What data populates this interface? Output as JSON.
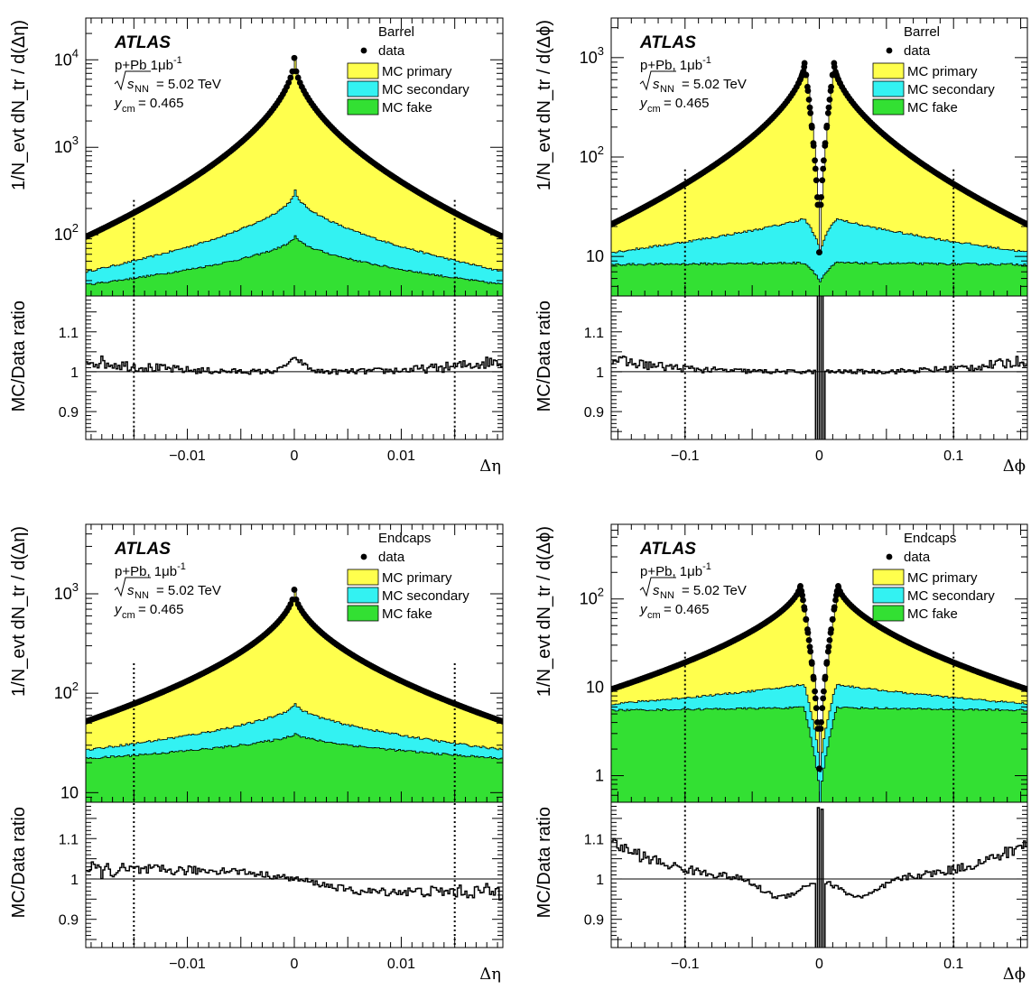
{
  "chart_data": [
    {
      "id": "barrel-deta",
      "type": "area",
      "region_label": "Barrel",
      "x_variable": "eta",
      "atlas_label": "ATLAS",
      "collision": "p+Pb  1μb",
      "collision_exp": "-1",
      "energy": "= 5.02 TeV",
      "ycm": "= 0.465",
      "ylabel": "1/N_evt dN_tr / d(Δη)",
      "ratio_ylabel": "MC/Data ratio",
      "xlabel": "Δη",
      "xlim": [
        -0.0195,
        0.0195
      ],
      "ylim_log": [
        20,
        30000
      ],
      "ratio_ylim": [
        0.83,
        1.19
      ],
      "xticks": [
        "−0.01",
        "0",
        "0.01"
      ],
      "xtick_values": [
        -0.01,
        0,
        0.01
      ],
      "yticks": [
        {
          "base": "10",
          "exp": "2",
          "value": 100
        },
        {
          "base": "10",
          "exp": "3",
          "value": 1000
        },
        {
          "base": "10",
          "exp": "4",
          "value": 10000
        }
      ],
      "ratio_yticks": [
        {
          "label": "0.9",
          "value": 0.9
        },
        {
          "label": "1",
          "value": 1.0
        },
        {
          "label": "1.1",
          "value": 1.1
        }
      ],
      "cut_lines": [
        -0.015,
        0.015
      ],
      "legend": [
        "data",
        "MC primary",
        "MC secondary",
        "MC fake"
      ],
      "profiles": {
        "data": {
          "peak": 10500,
          "edge": 95
        },
        "secondary": {
          "peak": 320,
          "edge": 38
        },
        "fake": {
          "peak": 98,
          "edge": 27
        }
      },
      "ratio_features": {
        "base": 1.0,
        "edge_dev": 0.03,
        "center_bump": 0.03,
        "noise": 0.012
      }
    },
    {
      "id": "barrel-dphi",
      "type": "area",
      "region_label": "Barrel",
      "x_variable": "phi",
      "atlas_label": "ATLAS",
      "collision": "p+Pb,  1μb",
      "collision_exp": "-1",
      "energy": "= 5.02 TeV",
      "ycm": "= 0.465",
      "ylabel": "1/N_evt dN_tr / d(Δϕ)",
      "ratio_ylabel": "MC/Data ratio",
      "xlabel": "Δϕ",
      "xlim": [
        -0.155,
        0.155
      ],
      "ylim_log": [
        4,
        2500
      ],
      "ratio_ylim": [
        0.83,
        1.19
      ],
      "xticks": [
        "−0.1",
        "0",
        "0.1"
      ],
      "xtick_values": [
        -0.1,
        0,
        0.1
      ],
      "yticks": [
        {
          "base": "10",
          "exp": "",
          "value": 10
        },
        {
          "base": "10",
          "exp": "2",
          "value": 100
        },
        {
          "base": "10",
          "exp": "3",
          "value": 1000
        }
      ],
      "ratio_yticks": [
        {
          "label": "0.9",
          "value": 0.9
        },
        {
          "label": "1",
          "value": 1.0
        },
        {
          "label": "1.1",
          "value": 1.1
        }
      ],
      "cut_lines": [
        -0.1,
        0.1
      ],
      "legend": [
        "data",
        "MC primary",
        "MC secondary",
        "MC fake"
      ],
      "profiles": {
        "data": {
          "peak": 880,
          "peak_x": 0.011,
          "edge": 21,
          "center_min": 11
        },
        "secondary": {
          "peak": 28,
          "edge": 11,
          "center_min": 10.5
        },
        "fake": {
          "peak": 8.7,
          "edge": 8.3,
          "center_min": 5.5
        }
      },
      "ratio_features": {
        "base": 1.0,
        "edge_dev": 0.03,
        "center_spike": 0.25,
        "noise": 0.01
      }
    },
    {
      "id": "endcaps-deta",
      "type": "area",
      "region_label": "Endcaps",
      "x_variable": "eta",
      "atlas_label": "ATLAS",
      "collision": "p+Pb,  1μb",
      "collision_exp": "-1",
      "energy": "= 5.02 TeV",
      "ycm": "= 0.465",
      "ylabel": "1/N_evt dN_tr / d(Δη)",
      "ratio_ylabel": "MC/Data ratio",
      "xlabel": "Δη",
      "xlim": [
        -0.0195,
        0.0195
      ],
      "ylim_log": [
        8,
        5000
      ],
      "ratio_ylim": [
        0.83,
        1.19
      ],
      "xticks": [
        "−0.01",
        "0",
        "0.01"
      ],
      "xtick_values": [
        -0.01,
        0,
        0.01
      ],
      "yticks": [
        {
          "base": "10",
          "exp": "",
          "value": 10
        },
        {
          "base": "10",
          "exp": "2",
          "value": 100
        },
        {
          "base": "10",
          "exp": "3",
          "value": 1000
        }
      ],
      "ratio_yticks": [
        {
          "label": "0.9",
          "value": 0.9
        },
        {
          "label": "1",
          "value": 1.0
        },
        {
          "label": "1.1",
          "value": 1.1
        }
      ],
      "cut_lines": [
        -0.015,
        0.015
      ],
      "legend": [
        "data",
        "MC primary",
        "MC secondary",
        "MC fake"
      ],
      "profiles": {
        "data": {
          "peak": 1100,
          "edge": 52
        },
        "secondary": {
          "peak": 80,
          "edge": 27
        },
        "fake": {
          "peak": 40,
          "edge": 22
        }
      },
      "ratio_features": {
        "base": 1.0,
        "slope": 0.035,
        "noise": 0.015
      }
    },
    {
      "id": "endcaps-dphi",
      "type": "area",
      "region_label": "Endcaps",
      "x_variable": "phi",
      "atlas_label": "ATLAS",
      "collision": "p+Pb,  1μb",
      "collision_exp": "-1",
      "energy": "= 5.02 TeV",
      "ycm": "= 0.465",
      "ylabel": "1/N_evt dN_tr / d(Δϕ)",
      "ratio_ylabel": "MC/Data ratio",
      "xlabel": "Δϕ",
      "xlim": [
        -0.155,
        0.155
      ],
      "ylim_log": [
        0.5,
        700
      ],
      "ratio_ylim": [
        0.83,
        1.19
      ],
      "xticks": [
        "−0.1",
        "0",
        "0.1"
      ],
      "xtick_values": [
        -0.1,
        0,
        0.1
      ],
      "yticks": [
        {
          "base": "1",
          "exp": "",
          "value": 1
        },
        {
          "base": "10",
          "exp": "",
          "value": 10
        },
        {
          "base": "10",
          "exp": "2",
          "value": 100
        }
      ],
      "ratio_yticks": [
        {
          "label": "0.9",
          "value": 0.9
        },
        {
          "label": "1",
          "value": 1.0
        },
        {
          "label": "1.1",
          "value": 1.1
        }
      ],
      "cut_lines": [
        -0.1,
        0.1
      ],
      "legend": [
        "data",
        "MC primary",
        "MC secondary",
        "MC fake"
      ],
      "profiles": {
        "data": {
          "peak": 145,
          "peak_x": 0.014,
          "edge": 9.5,
          "center_min": 1.2
        },
        "secondary": {
          "peak": 12,
          "edge": 6.5,
          "center_min": 1.1
        },
        "fake": {
          "peak": 6,
          "edge": 5.5,
          "center_min": 0.5
        }
      },
      "ratio_features": {
        "base": 1.0,
        "edge_dev": 0.09,
        "dip": 0.045,
        "center_spike": 0.18,
        "noise": 0.012
      }
    }
  ],
  "colors": {
    "background": "#ffffff",
    "primary": "#ffff4d",
    "secondary": "#33f2f2",
    "fake": "#33e033",
    "data": "#000000",
    "outline": "#000000"
  }
}
